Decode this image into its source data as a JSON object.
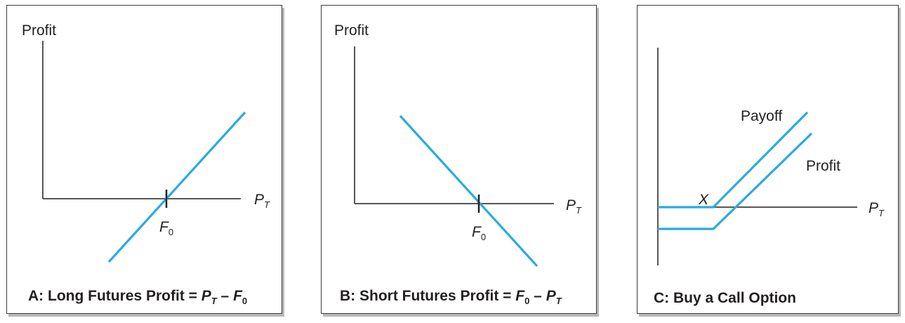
{
  "line_color": "#29abe2",
  "axis_color": "#231f20",
  "panels": [
    {
      "y_label": "Profit",
      "x_label_main": "P",
      "x_label_sub": "T",
      "tick_main": "F",
      "tick_sub": "0",
      "caption": {
        "prefix": "A: Long Futures Profit = ",
        "t1_main": "P",
        "t1_sub": "T",
        "op": " – ",
        "t2_main": "F",
        "t2_sub": "0"
      }
    },
    {
      "y_label": "Profit",
      "x_label_main": "P",
      "x_label_sub": "T",
      "tick_main": "F",
      "tick_sub": "0",
      "caption": {
        "prefix": "B: Short Futures Profit = ",
        "t1_main": "F",
        "t1_sub": "0",
        "op": " – ",
        "t2_main": "P",
        "t2_sub": "T"
      }
    },
    {
      "x_label_main": "P",
      "x_label_sub": "T",
      "strike_label": "X",
      "payoff_label": "Payoff",
      "profit_label": "Profit",
      "caption": {
        "text": "C: Buy a Call Option"
      }
    }
  ]
}
